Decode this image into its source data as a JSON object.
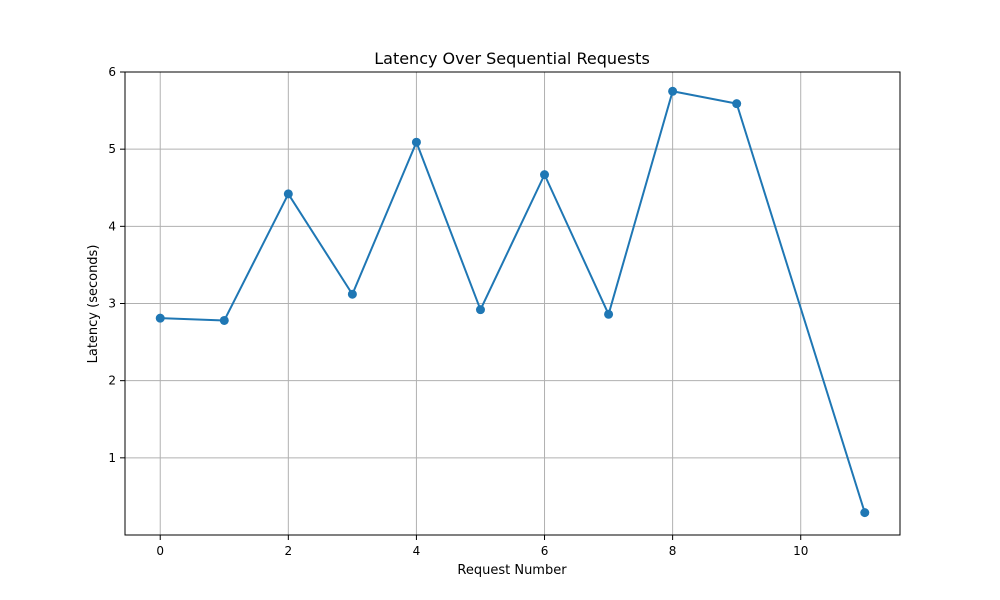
{
  "chart_data": {
    "type": "line",
    "title": "Latency Over Sequential Requests",
    "xlabel": "Request Number",
    "ylabel": "Latency (seconds)",
    "x": [
      0,
      1,
      2,
      3,
      4,
      5,
      6,
      7,
      8,
      9,
      11
    ],
    "series": [
      {
        "values": [
          2.81,
          2.78,
          4.42,
          3.12,
          5.09,
          2.92,
          4.67,
          2.86,
          5.75,
          5.59,
          0.29
        ],
        "color": "#1f77b4",
        "marker": "circle"
      }
    ],
    "xlim": [
      -0.55,
      11.55
    ],
    "ylim": [
      0.0,
      6.0
    ],
    "xticks": [
      0,
      2,
      4,
      6,
      8,
      10
    ],
    "yticks": [
      1,
      2,
      3,
      4,
      5,
      6
    ],
    "xtick_labels": [
      "0",
      "2",
      "4",
      "6",
      "8",
      "10"
    ],
    "ytick_labels": [
      "1",
      "2",
      "3",
      "4",
      "5",
      "6"
    ],
    "grid": true,
    "legend": false
  }
}
